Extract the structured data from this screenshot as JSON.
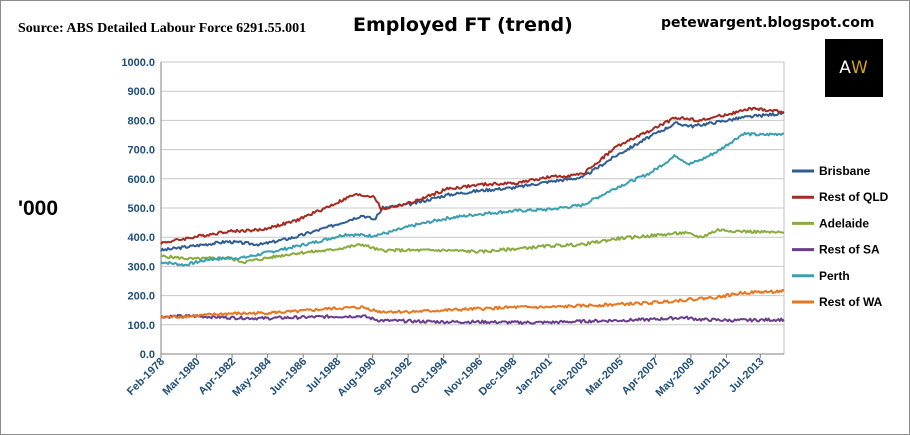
{
  "header": {
    "source": "Source: ABS Detailed Labour Force 6291.55.001",
    "blog": "petewargent.blogspot.com",
    "logo_a": "A",
    "logo_w": "W"
  },
  "chart_data": {
    "type": "line",
    "title": "Employed FT (trend)",
    "ylabel": "'000",
    "xlabel": "",
    "ylim": [
      0,
      1000
    ],
    "yticks": [
      "0.0",
      "100.0",
      "200.0",
      "300.0",
      "400.0",
      "500.0",
      "600.0",
      "700.0",
      "800.0",
      "900.0",
      "1000.0"
    ],
    "xlim": [
      1978.1,
      2014.9
    ],
    "xticks": [
      {
        "label": "Feb-1978",
        "x": 1978.1
      },
      {
        "label": "Mar-1980",
        "x": 1980.2
      },
      {
        "label": "Apr-1982",
        "x": 1982.3
      },
      {
        "label": "May-1984",
        "x": 1984.4
      },
      {
        "label": "Jun-1986",
        "x": 1986.5
      },
      {
        "label": "Jul-1988",
        "x": 1988.5
      },
      {
        "label": "Aug-1990",
        "x": 1990.6
      },
      {
        "label": "Sep-1992",
        "x": 1992.7
      },
      {
        "label": "Oct-1994",
        "x": 1994.8
      },
      {
        "label": "Nov-1996",
        "x": 1996.9
      },
      {
        "label": "Dec-1998",
        "x": 1998.9
      },
      {
        "label": "Jan-2001",
        "x": 2001.0
      },
      {
        "label": "Feb-2003",
        "x": 2003.1
      },
      {
        "label": "Mar-2005",
        "x": 2005.2
      },
      {
        "label": "Apr-2007",
        "x": 2007.3
      },
      {
        "label": "May-2009",
        "x": 2009.4
      },
      {
        "label": "Jun-2011",
        "x": 2011.5
      },
      {
        "label": "Jul-2013",
        "x": 2013.5
      }
    ],
    "grid": true,
    "legend": "right",
    "series": [
      {
        "name": "Brisbane",
        "color": "#2e5e91",
        "points": [
          [
            1978.1,
            355
          ],
          [
            1980,
            370
          ],
          [
            1982,
            385
          ],
          [
            1984,
            375
          ],
          [
            1986,
            400
          ],
          [
            1988,
            435
          ],
          [
            1990,
            475
          ],
          [
            1990.7,
            460
          ],
          [
            1991.2,
            500
          ],
          [
            1993,
            515
          ],
          [
            1995,
            545
          ],
          [
            1997,
            560
          ],
          [
            1999,
            570
          ],
          [
            2001,
            590
          ],
          [
            2003,
            605
          ],
          [
            2005,
            680
          ],
          [
            2007,
            745
          ],
          [
            2008.5,
            790
          ],
          [
            2009.5,
            780
          ],
          [
            2011,
            795
          ],
          [
            2012.5,
            810
          ],
          [
            2014.9,
            825
          ]
        ]
      },
      {
        "name": "Rest of QLD",
        "color": "#a52a20",
        "points": [
          [
            1978.1,
            380
          ],
          [
            1980,
            400
          ],
          [
            1982,
            420
          ],
          [
            1984,
            425
          ],
          [
            1986,
            455
          ],
          [
            1988,
            505
          ],
          [
            1989.5,
            545
          ],
          [
            1990.7,
            540
          ],
          [
            1991.1,
            495
          ],
          [
            1993,
            520
          ],
          [
            1995,
            565
          ],
          [
            1997,
            580
          ],
          [
            1999,
            585
          ],
          [
            2001,
            605
          ],
          [
            2003,
            615
          ],
          [
            2005,
            710
          ],
          [
            2007,
            765
          ],
          [
            2008.5,
            810
          ],
          [
            2010,
            800
          ],
          [
            2011.5,
            820
          ],
          [
            2013,
            840
          ],
          [
            2014.9,
            830
          ]
        ]
      },
      {
        "name": "Adelaide",
        "color": "#8aac3f",
        "points": [
          [
            1978.1,
            335
          ],
          [
            1980,
            325
          ],
          [
            1982,
            330
          ],
          [
            1983,
            315
          ],
          [
            1984,
            325
          ],
          [
            1986,
            345
          ],
          [
            1988,
            355
          ],
          [
            1990,
            375
          ],
          [
            1991,
            355
          ],
          [
            1993,
            355
          ],
          [
            1995,
            355
          ],
          [
            1997,
            350
          ],
          [
            1999,
            360
          ],
          [
            2001,
            370
          ],
          [
            2003,
            375
          ],
          [
            2005,
            395
          ],
          [
            2007,
            405
          ],
          [
            2009,
            415
          ],
          [
            2010,
            400
          ],
          [
            2011,
            425
          ],
          [
            2012.5,
            420
          ],
          [
            2014.9,
            415
          ]
        ]
      },
      {
        "name": "Rest of SA",
        "color": "#6a3d8c",
        "points": [
          [
            1978.1,
            128
          ],
          [
            1980,
            130
          ],
          [
            1982,
            125
          ],
          [
            1984,
            122
          ],
          [
            1986,
            125
          ],
          [
            1988,
            128
          ],
          [
            1990,
            130
          ],
          [
            1991,
            115
          ],
          [
            1993,
            112
          ],
          [
            1995,
            110
          ],
          [
            1997,
            110
          ],
          [
            1999,
            108
          ],
          [
            2001,
            108
          ],
          [
            2003,
            112
          ],
          [
            2005,
            115
          ],
          [
            2007,
            118
          ],
          [
            2009,
            125
          ],
          [
            2010,
            118
          ],
          [
            2012,
            115
          ],
          [
            2014.9,
            118
          ]
        ]
      },
      {
        "name": "Perth",
        "color": "#3a9fb0",
        "points": [
          [
            1978.1,
            315
          ],
          [
            1979.5,
            305
          ],
          [
            1981,
            325
          ],
          [
            1983,
            330
          ],
          [
            1985,
            355
          ],
          [
            1987,
            380
          ],
          [
            1989,
            410
          ],
          [
            1990.5,
            405
          ],
          [
            1991.5,
            415
          ],
          [
            1993,
            440
          ],
          [
            1995,
            465
          ],
          [
            1997,
            480
          ],
          [
            1999,
            490
          ],
          [
            2001,
            495
          ],
          [
            2003,
            510
          ],
          [
            2005,
            570
          ],
          [
            2007,
            620
          ],
          [
            2008.5,
            680
          ],
          [
            2009.3,
            650
          ],
          [
            2010,
            665
          ],
          [
            2011,
            695
          ],
          [
            2012.5,
            755
          ],
          [
            2013.5,
            750
          ],
          [
            2014.9,
            755
          ]
        ]
      },
      {
        "name": "Rest of WA",
        "color": "#e8761e",
        "points": [
          [
            1978.1,
            125
          ],
          [
            1980,
            130
          ],
          [
            1982,
            138
          ],
          [
            1984,
            140
          ],
          [
            1986,
            145
          ],
          [
            1988,
            155
          ],
          [
            1990,
            160
          ],
          [
            1991,
            145
          ],
          [
            1993,
            145
          ],
          [
            1995,
            150
          ],
          [
            1997,
            155
          ],
          [
            1999,
            160
          ],
          [
            2001,
            160
          ],
          [
            2003,
            165
          ],
          [
            2005,
            170
          ],
          [
            2007,
            175
          ],
          [
            2009,
            185
          ],
          [
            2011,
            195
          ],
          [
            2012.5,
            210
          ],
          [
            2014.9,
            215
          ]
        ]
      }
    ]
  }
}
